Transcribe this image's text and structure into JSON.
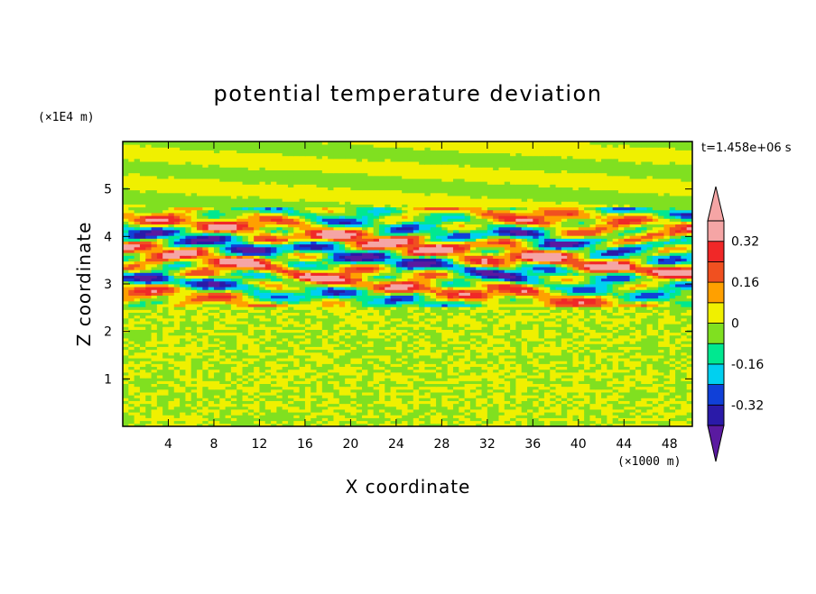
{
  "chart_data": {
    "type": "heatmap",
    "title": "potential temperature deviation",
    "xlabel": "X coordinate",
    "ylabel": "Z coordinate",
    "x_multiplier_label": "(×1000 m)",
    "y_multiplier_label": "(×1E4 m)",
    "time_label": "t=1.458e+06 s",
    "xlim": [
      0,
      50
    ],
    "ylim": [
      0,
      6
    ],
    "x_ticks": [
      4,
      8,
      12,
      16,
      20,
      24,
      28,
      32,
      36,
      40,
      44,
      48
    ],
    "y_ticks": [
      1,
      2,
      3,
      4,
      5
    ],
    "colorbar": {
      "levels": [
        -0.48,
        -0.4,
        -0.32,
        -0.24,
        -0.16,
        -0.08,
        0,
        0.08,
        0.16,
        0.24,
        0.32,
        0.4,
        0.48
      ],
      "colors": [
        "#5a1aa0",
        "#2a1aa8",
        "#1040d8",
        "#00d0f0",
        "#00e890",
        "#80e020",
        "#f0f000",
        "#ffa000",
        "#f05020",
        "#f02828",
        "#f5a5a5"
      ],
      "labels": [
        "0.32",
        "0.16",
        "0",
        "-0.16",
        "-0.32"
      ],
      "label_values": [
        0.32,
        0.16,
        0,
        -0.16,
        -0.32
      ],
      "extend": "both"
    },
    "structure": {
      "turbulent_layer_z": [
        2.55,
        4.6
      ],
      "quiet_layer_z": [
        0,
        2.55
      ],
      "upper_layer_z": [
        4.6,
        6
      ]
    }
  }
}
